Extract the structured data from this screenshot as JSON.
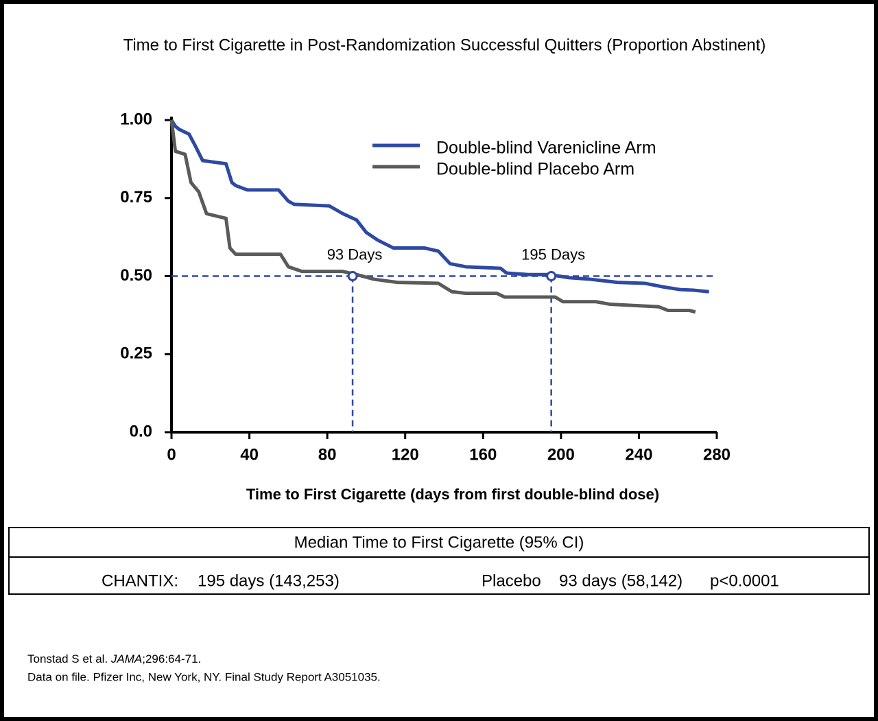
{
  "chart_data": {
    "type": "line",
    "title": "Time to First Cigarette in Post-Randomization Successful Quitters (Proportion Abstinent)",
    "x_label": "Time to First Cigarette (days from first double-blind dose)",
    "xlim": [
      0,
      280
    ],
    "xticks": [
      0,
      40,
      80,
      120,
      160,
      200,
      240,
      280
    ],
    "ylim": [
      0,
      1
    ],
    "yticks": [
      {
        "value": 0,
        "label": "0.0"
      },
      0.25,
      {
        "value": 0.5,
        "label": "0.50"
      },
      0.75,
      {
        "value": 1,
        "label": "1.00"
      }
    ],
    "series": [
      {
        "name": "Double-blind Varenicline Arm",
        "color": "#2e49a3",
        "x": [
          0,
          2,
          4,
          9,
          12,
          16,
          28,
          31,
          33,
          39,
          55,
          60,
          63,
          81,
          88,
          95,
          100,
          106,
          114,
          130,
          137,
          143,
          151,
          169,
          172,
          183,
          194,
          204,
          215,
          229,
          243,
          252,
          261,
          268,
          276
        ],
        "values": [
          1.0,
          0.98,
          0.97,
          0.955,
          0.92,
          0.87,
          0.86,
          0.8,
          0.79,
          0.776,
          0.776,
          0.74,
          0.73,
          0.725,
          0.7,
          0.68,
          0.64,
          0.615,
          0.59,
          0.59,
          0.58,
          0.54,
          0.53,
          0.525,
          0.51,
          0.505,
          0.505,
          0.495,
          0.49,
          0.48,
          0.477,
          0.466,
          0.457,
          0.455,
          0.45
        ]
      },
      {
        "name": "Double-blind Placebo Arm",
        "color": "#5a5a5a",
        "x": [
          0,
          2,
          7,
          10,
          14,
          18,
          28,
          30,
          33,
          56,
          60,
          67,
          88,
          95,
          104,
          116,
          137,
          144,
          151,
          167,
          171,
          197,
          201,
          218,
          225,
          250,
          255,
          266,
          269
        ],
        "values": [
          1.0,
          0.9,
          0.89,
          0.8,
          0.77,
          0.7,
          0.685,
          0.59,
          0.57,
          0.57,
          0.53,
          0.515,
          0.515,
          0.505,
          0.49,
          0.48,
          0.477,
          0.45,
          0.445,
          0.445,
          0.433,
          0.433,
          0.418,
          0.418,
          0.41,
          0.402,
          0.39,
          0.39,
          0.385
        ]
      }
    ],
    "markers": [
      {
        "x": 93,
        "y": 0.5,
        "label": "93 Days"
      },
      {
        "x": 195,
        "y": 0.5,
        "label": "195 Days"
      }
    ],
    "reference_color": "#2e49a3"
  },
  "table": {
    "title": "Median Time to First Cigarette (95% CI)",
    "rows": [
      [
        "CHANTIX:",
        "195 days (143,253)",
        "Placebo",
        "93 days (58,142)",
        "p<0.0001"
      ]
    ]
  },
  "footnotes": [
    [
      "Tonstad S et al. ",
      "JAMA",
      ";296:64-71."
    ],
    [
      "Data on file. Pfizer Inc, New York, NY. Final Study Report A3051035."
    ]
  ]
}
